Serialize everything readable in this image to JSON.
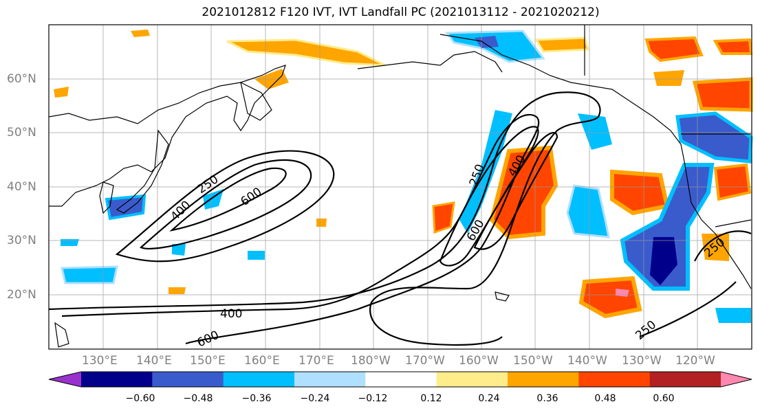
{
  "title": "2021012812 F120 IVT, IVT Landfall PC (2021013112 - 2021020212)",
  "lat_labels": [
    "60°N",
    "50°N",
    "40°N",
    "30°N",
    "20°N"
  ],
  "lon_labels": [
    "130°E",
    "140°E",
    "150°E",
    "160°E",
    "170°E",
    "180°W",
    "170°W",
    "160°W",
    "150°W",
    "140°W",
    "130°W",
    "120°W"
  ],
  "contour_labels": [
    "250",
    "400",
    "600",
    "250",
    "400",
    "600",
    "400",
    "600",
    "250",
    "250"
  ],
  "colorbar": {
    "ticks": [
      "−0.60",
      "−0.48",
      "−0.36",
      "−0.24",
      "−0.12",
      "0.12",
      "0.24",
      "0.36",
      "0.48",
      "0.60"
    ],
    "colors": [
      "#9932cc",
      "#00008b",
      "#3a5bcc",
      "#00bfff",
      "#b0e0ff",
      "#ffffff",
      "#ffec8b",
      "#ffa500",
      "#ff4500",
      "#b22222",
      "#ff88b0"
    ]
  }
}
